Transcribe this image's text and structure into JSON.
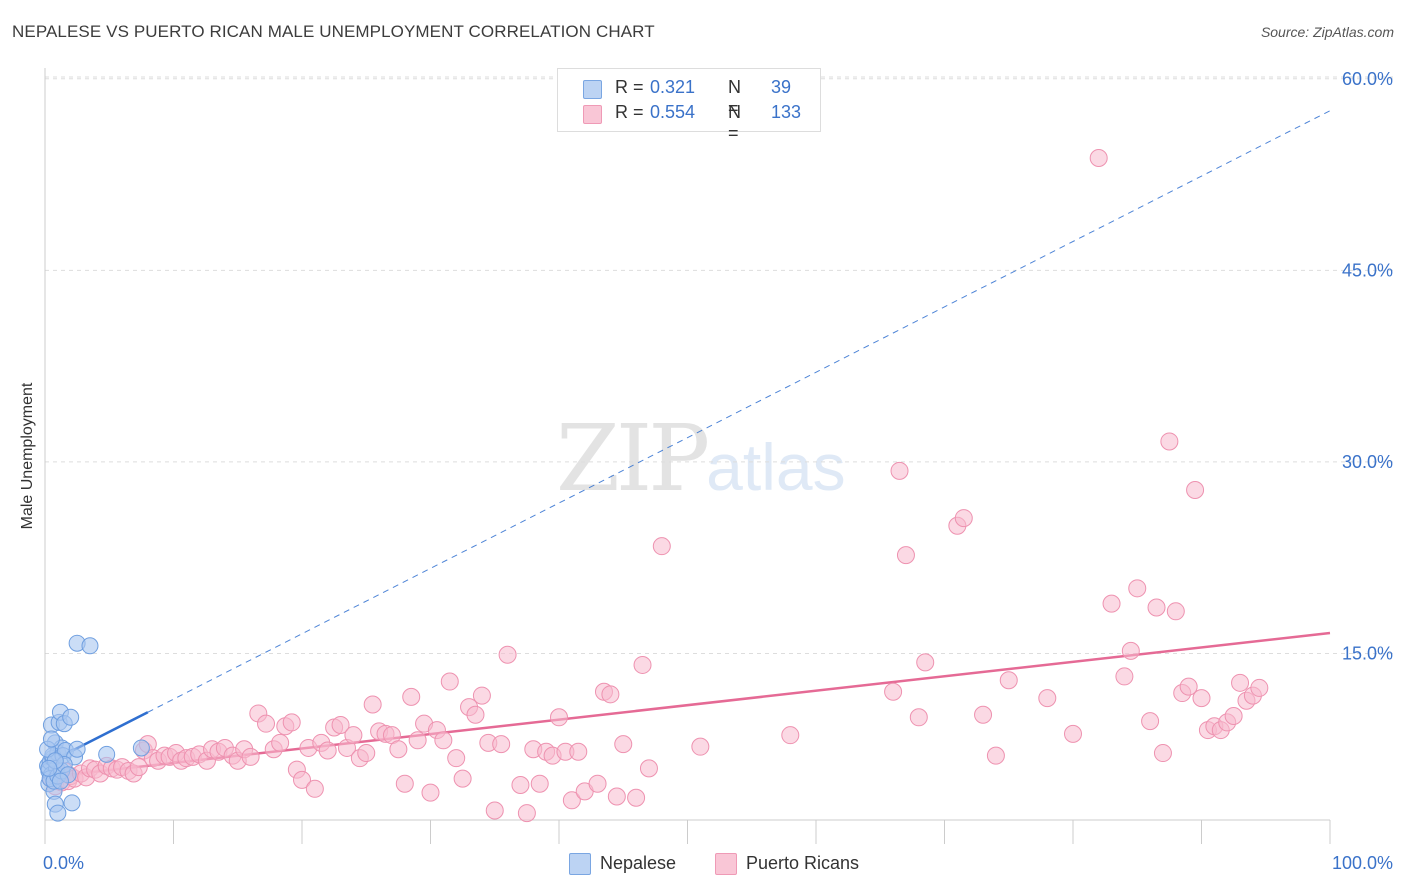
{
  "header": {
    "title": "NEPALESE VS PUERTO RICAN MALE UNEMPLOYMENT CORRELATION CHART",
    "source": "Source: ZipAtlas.com"
  },
  "watermark": {
    "zip": "ZIP",
    "atlas": "atlas"
  },
  "legend": {
    "rows": [
      {
        "r_label": "R =",
        "r_value": "0.321",
        "n_label": "N =",
        "n_value": "39"
      },
      {
        "r_label": "R =",
        "r_value": "0.554",
        "n_label": "N =",
        "n_value": "133"
      }
    ]
  },
  "bottom_legend": {
    "items": [
      {
        "label": "Nepalese"
      },
      {
        "label": "Puerto Ricans"
      }
    ]
  },
  "colors": {
    "nepalese_fill": "#a9c7f0",
    "nepalese_stroke": "#6f9fe0",
    "nepalese_line": "#2f6fd0",
    "pr_fill": "#f7bacd",
    "pr_stroke": "#ee92b0",
    "pr_line": "#e56a95",
    "grid": "#dddddd",
    "tick_text": "#3a72c9"
  },
  "chart_data": {
    "type": "scatter",
    "title": "NEPALESE VS PUERTO RICAN MALE UNEMPLOYMENT CORRELATION CHART",
    "xlabel": "",
    "ylabel": "Male Unemployment",
    "xlim": [
      0,
      100
    ],
    "ylim": [
      0,
      63
    ],
    "x_tick_labels": [
      {
        "value": 0,
        "label": "0.0%"
      },
      {
        "value": 100,
        "label": "100.0%"
      }
    ],
    "y_tick_labels": [
      {
        "value": 15,
        "label": "15.0%"
      },
      {
        "value": 30,
        "label": "30.0%"
      },
      {
        "value": 45,
        "label": "45.0%"
      },
      {
        "value": 60,
        "label": "60.0%"
      }
    ],
    "series": [
      {
        "name": "Nepalese",
        "points": [
          [
            0.2,
            6.2
          ],
          [
            0.3,
            5.8
          ],
          [
            0.4,
            6.5
          ],
          [
            0.5,
            5.5
          ],
          [
            0.6,
            6.8
          ],
          [
            0.3,
            4.8
          ],
          [
            0.7,
            4.2
          ],
          [
            0.8,
            3.2
          ],
          [
            1.0,
            2.5
          ],
          [
            0.5,
            9.4
          ],
          [
            0.8,
            8.0
          ],
          [
            1.0,
            7.2
          ],
          [
            1.1,
            9.6
          ],
          [
            1.2,
            10.4
          ],
          [
            1.3,
            7.6
          ],
          [
            1.5,
            9.5
          ],
          [
            0.6,
            7.0
          ],
          [
            0.9,
            6.0
          ],
          [
            1.4,
            7.0
          ],
          [
            1.6,
            7.4
          ],
          [
            2.0,
            10.0
          ],
          [
            2.1,
            3.3
          ],
          [
            2.3,
            6.9
          ],
          [
            2.5,
            7.5
          ],
          [
            0.4,
            5.2
          ],
          [
            0.7,
            5.0
          ],
          [
            1.0,
            5.4
          ],
          [
            1.3,
            5.8
          ],
          [
            1.5,
            6.3
          ],
          [
            0.2,
            7.5
          ],
          [
            0.5,
            8.3
          ],
          [
            1.8,
            5.5
          ],
          [
            1.2,
            5.0
          ],
          [
            0.8,
            6.6
          ],
          [
            2.5,
            15.8
          ],
          [
            3.5,
            15.6
          ],
          [
            4.8,
            7.1
          ],
          [
            7.5,
            7.6
          ],
          [
            0.3,
            6.0
          ]
        ],
        "trend": {
          "x0": 0,
          "y0": 6.3,
          "x1": 100,
          "y1": 57.5,
          "solid_until_x": 8.0
        }
      },
      {
        "name": "Puerto Ricans",
        "points": [
          [
            0.5,
            5.2
          ],
          [
            0.8,
            4.6
          ],
          [
            1.0,
            5.5
          ],
          [
            1.3,
            4.9
          ],
          [
            1.5,
            5.8
          ],
          [
            1.8,
            5.0
          ],
          [
            2.0,
            5.4
          ],
          [
            2.3,
            5.2
          ],
          [
            2.8,
            5.6
          ],
          [
            3.2,
            5.3
          ],
          [
            3.5,
            6.0
          ],
          [
            3.9,
            5.9
          ],
          [
            4.3,
            5.6
          ],
          [
            4.8,
            6.2
          ],
          [
            5.2,
            6.0
          ],
          [
            5.6,
            5.9
          ],
          [
            6.0,
            6.1
          ],
          [
            6.5,
            5.8
          ],
          [
            6.9,
            5.6
          ],
          [
            7.3,
            6.1
          ],
          [
            7.7,
            7.4
          ],
          [
            8.0,
            7.9
          ],
          [
            8.4,
            6.8
          ],
          [
            8.8,
            6.6
          ],
          [
            9.3,
            7.0
          ],
          [
            9.7,
            6.9
          ],
          [
            10.2,
            7.2
          ],
          [
            10.6,
            6.6
          ],
          [
            11.0,
            6.8
          ],
          [
            11.5,
            6.9
          ],
          [
            12.0,
            7.1
          ],
          [
            12.6,
            6.6
          ],
          [
            13.0,
            7.5
          ],
          [
            13.5,
            7.3
          ],
          [
            14.0,
            7.6
          ],
          [
            14.6,
            7.0
          ],
          [
            15.0,
            6.6
          ],
          [
            15.5,
            7.5
          ],
          [
            16.0,
            6.9
          ],
          [
            16.6,
            10.3
          ],
          [
            17.2,
            9.5
          ],
          [
            17.8,
            7.5
          ],
          [
            18.3,
            8.0
          ],
          [
            18.7,
            9.3
          ],
          [
            19.2,
            9.6
          ],
          [
            19.6,
            5.9
          ],
          [
            20.0,
            5.1
          ],
          [
            20.5,
            7.6
          ],
          [
            21.0,
            4.4
          ],
          [
            21.5,
            8.0
          ],
          [
            22.0,
            7.4
          ],
          [
            22.5,
            9.2
          ],
          [
            23.0,
            9.4
          ],
          [
            23.5,
            7.6
          ],
          [
            24.0,
            8.6
          ],
          [
            24.5,
            6.8
          ],
          [
            25.0,
            7.2
          ],
          [
            25.5,
            11.0
          ],
          [
            26.0,
            8.9
          ],
          [
            26.5,
            8.7
          ],
          [
            27.0,
            8.6
          ],
          [
            27.5,
            7.5
          ],
          [
            28.0,
            4.8
          ],
          [
            28.5,
            11.6
          ],
          [
            29.0,
            8.2
          ],
          [
            29.5,
            9.5
          ],
          [
            30.0,
            4.1
          ],
          [
            30.5,
            9.0
          ],
          [
            31.0,
            8.2
          ],
          [
            31.5,
            12.8
          ],
          [
            32.0,
            6.8
          ],
          [
            32.5,
            5.2
          ],
          [
            33.0,
            10.8
          ],
          [
            33.5,
            10.2
          ],
          [
            34.0,
            11.7
          ],
          [
            34.5,
            8.0
          ],
          [
            35.0,
            2.7
          ],
          [
            35.5,
            7.9
          ],
          [
            36.0,
            14.9
          ],
          [
            37.0,
            4.7
          ],
          [
            37.5,
            2.5
          ],
          [
            38.0,
            7.5
          ],
          [
            38.5,
            4.8
          ],
          [
            39.0,
            7.3
          ],
          [
            39.5,
            7.0
          ],
          [
            40.0,
            10.0
          ],
          [
            40.5,
            7.3
          ],
          [
            41.0,
            3.5
          ],
          [
            41.5,
            7.3
          ],
          [
            42.0,
            4.2
          ],
          [
            43.0,
            4.8
          ],
          [
            43.5,
            12.0
          ],
          [
            44.0,
            11.8
          ],
          [
            44.5,
            3.8
          ],
          [
            45.0,
            7.9
          ],
          [
            46.0,
            3.7
          ],
          [
            46.5,
            14.1
          ],
          [
            47.0,
            6.0
          ],
          [
            48.0,
            23.4
          ],
          [
            51.0,
            7.7
          ],
          [
            58.0,
            8.6
          ],
          [
            66.0,
            12.0
          ],
          [
            66.5,
            29.3
          ],
          [
            67.0,
            22.7
          ],
          [
            68.0,
            10.0
          ],
          [
            68.5,
            14.3
          ],
          [
            71.0,
            25.0
          ],
          [
            71.5,
            25.6
          ],
          [
            73.0,
            10.2
          ],
          [
            74.0,
            7.0
          ],
          [
            75.0,
            12.9
          ],
          [
            78.0,
            11.5
          ],
          [
            80.0,
            8.7
          ],
          [
            82.0,
            53.8
          ],
          [
            83.0,
            18.9
          ],
          [
            84.0,
            13.2
          ],
          [
            84.5,
            15.2
          ],
          [
            85.0,
            20.1
          ],
          [
            86.0,
            9.7
          ],
          [
            86.5,
            18.6
          ],
          [
            87.0,
            7.2
          ],
          [
            87.5,
            31.6
          ],
          [
            88.0,
            18.3
          ],
          [
            88.5,
            11.9
          ],
          [
            89.0,
            12.4
          ],
          [
            89.5,
            27.8
          ],
          [
            90.0,
            11.5
          ],
          [
            90.5,
            9.0
          ],
          [
            91.0,
            9.3
          ],
          [
            91.5,
            9.0
          ],
          [
            92.0,
            9.6
          ],
          [
            92.5,
            10.1
          ],
          [
            93.0,
            12.7
          ],
          [
            93.5,
            11.3
          ],
          [
            94.0,
            11.7
          ],
          [
            94.5,
            12.3
          ]
        ],
        "trend": {
          "x0": 0,
          "y0": 5.3,
          "x1": 100,
          "y1": 16.6
        }
      }
    ]
  }
}
